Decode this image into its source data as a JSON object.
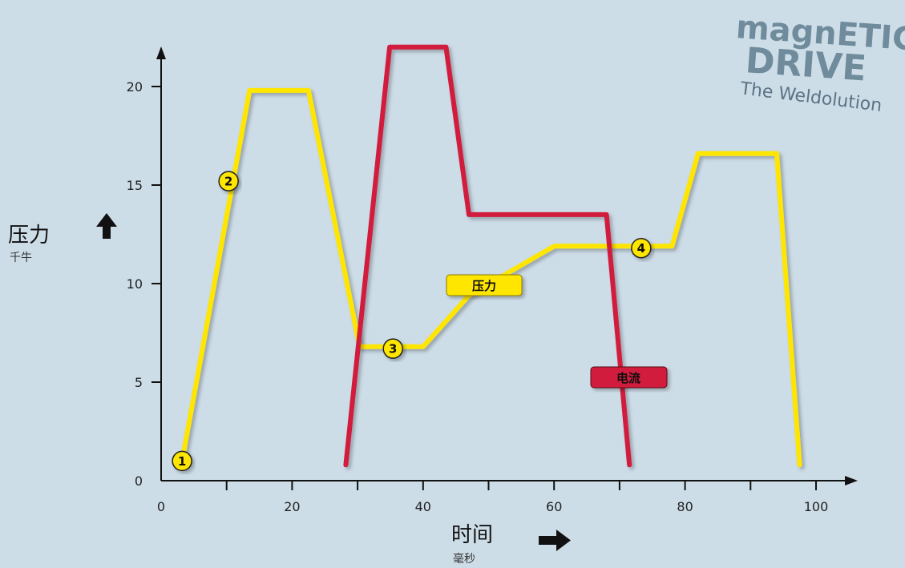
{
  "logo": {
    "line1": "magnETIC",
    "line2": "DRIVE",
    "line3": "The Weldolution"
  },
  "chart_data": {
    "type": "line",
    "title": "",
    "xlabel": "时间",
    "xlabel_unit": "毫秒",
    "ylabel": "压力",
    "ylabel_unit": "千牛",
    "xlim": [
      0,
      105
    ],
    "ylim": [
      0,
      22
    ],
    "x_ticks": [
      0,
      20,
      40,
      60,
      80,
      100
    ],
    "x_minor_ticks": [
      10,
      30,
      50,
      70,
      90
    ],
    "y_ticks": [
      0,
      5,
      10,
      15,
      20
    ],
    "grid": false,
    "series": [
      {
        "name": "压力",
        "color": "#ffe600",
        "points": [
          [
            3.2,
            1.0
          ],
          [
            13.5,
            19.8
          ],
          [
            22.5,
            19.8
          ],
          [
            30.3,
            6.8
          ],
          [
            40,
            6.8
          ],
          [
            47,
            9.4
          ],
          [
            60,
            11.9
          ],
          [
            78,
            11.9
          ],
          [
            82,
            16.6
          ],
          [
            94,
            16.6
          ],
          [
            97.5,
            0.8
          ]
        ]
      },
      {
        "name": "电流",
        "color": "#d11a3d",
        "points": [
          [
            28.2,
            0.8
          ],
          [
            34.9,
            22.0
          ],
          [
            43.5,
            22.0
          ],
          [
            47,
            13.5
          ],
          [
            68,
            13.5
          ],
          [
            71.5,
            0.8
          ]
        ]
      }
    ],
    "annotations": [
      {
        "label": "1",
        "x": 3.2,
        "y": 1.0
      },
      {
        "label": "2",
        "x": 10.3,
        "y": 15.2
      },
      {
        "label": "3",
        "x": 35.4,
        "y": 6.7
      },
      {
        "label": "4",
        "x": 73.3,
        "y": 11.8
      }
    ]
  }
}
